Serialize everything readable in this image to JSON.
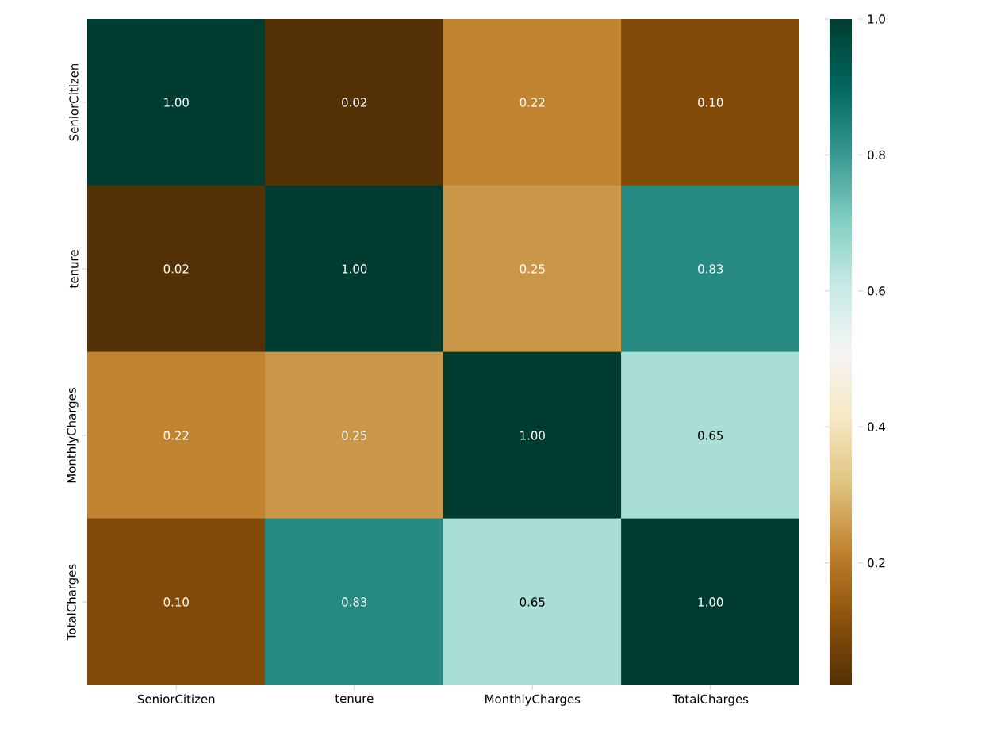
{
  "chart_data": {
    "type": "heatmap",
    "categories": [
      "SeniorCitizen",
      "tenure",
      "MonthlyCharges",
      "TotalCharges"
    ],
    "y_categories": [
      "SeniorCitizen",
      "tenure",
      "MonthlyCharges",
      "TotalCharges"
    ],
    "cells": [
      [
        1.0,
        0.02,
        0.22,
        0.1
      ],
      [
        0.02,
        1.0,
        0.25,
        0.83
      ],
      [
        0.22,
        0.25,
        1.0,
        0.65
      ],
      [
        0.1,
        0.83,
        0.65,
        1.0
      ]
    ],
    "cell_labels": [
      [
        "1.00",
        "0.02",
        "0.22",
        "0.10"
      ],
      [
        "0.02",
        "1.00",
        "0.25",
        "0.83"
      ],
      [
        "0.22",
        "0.25",
        "1.00",
        "0.65"
      ],
      [
        "0.10",
        "0.83",
        "0.65",
        "1.00"
      ]
    ],
    "clim": [
      0.02,
      1.0
    ],
    "cticks": [
      0.2,
      0.4,
      0.6,
      0.8,
      {
        "value": 1,
        "label": "1.0"
      }
    ]
  }
}
